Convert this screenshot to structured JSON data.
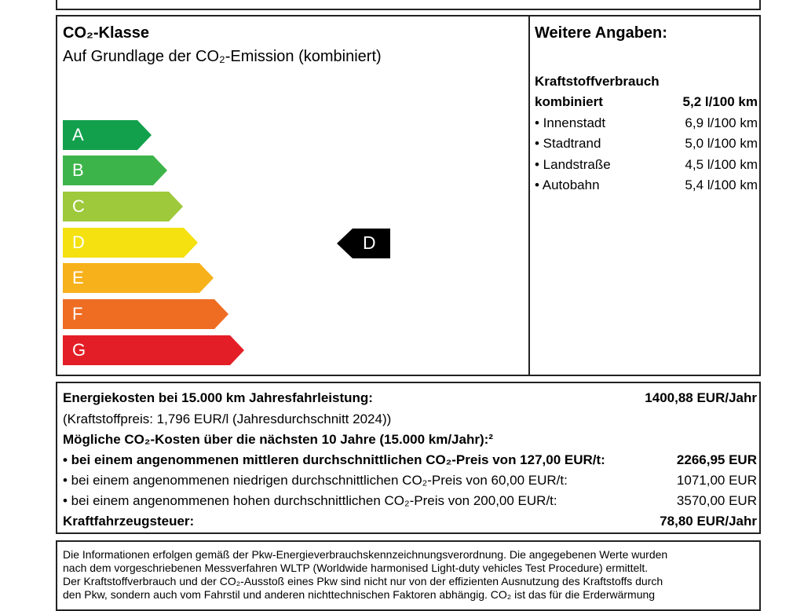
{
  "co2": {
    "title": "CO₂-Klasse",
    "subtitle": "Auf Grundlage der CO₂-Emission (kombiniert)",
    "classes": [
      {
        "label": "A",
        "color": "#12a04d"
      },
      {
        "label": "B",
        "color": "#3db44a"
      },
      {
        "label": "C",
        "color": "#9dc93b"
      },
      {
        "label": "D",
        "color": "#f4e10f"
      },
      {
        "label": "E",
        "color": "#f7b11b"
      },
      {
        "label": "F",
        "color": "#ee6d23"
      },
      {
        "label": "G",
        "color": "#e41e26"
      }
    ],
    "current": "D"
  },
  "info": {
    "title": "Weitere Angaben:",
    "consumption_heading": "Kraftstoffverbrauch",
    "rows": [
      {
        "label": "kombiniert",
        "value": "5,2 l/100 km"
      },
      {
        "label": "• Innenstadt",
        "value": "6,9 l/100 km"
      },
      {
        "label": "• Stadtrand",
        "value": "5,0 l/100 km"
      },
      {
        "label": "• Landstraße",
        "value": "4,5 l/100 km"
      },
      {
        "label": "• Autobahn",
        "value": "5,4 l/100 km"
      }
    ]
  },
  "costs": {
    "energy_label": "Energiekosten bei 15.000 km Jahresfahrleistung:",
    "energy_value": "1400,88 EUR/Jahr",
    "fuel_price": "(Kraftstoffpreis: 1,796 EUR/l (Jahresdurchschnitt 2024))",
    "co2_heading": "Mögliche CO₂-Kosten über die nächsten 10 Jahre (15.000 km/Jahr):²",
    "mid_label": "• bei einem angenommenen mittleren durchschnittlichen CO₂-Preis von 127,00 EUR/t:",
    "mid_value": "2266,95 EUR",
    "low_label": "• bei einem angenommenen niedrigen durchschnittlichen CO₂-Preis von 60,00 EUR/t:",
    "low_value": "1071,00 EUR",
    "high_label": "• bei einem angenommenen hohen durchschnittlichen CO₂-Preis von 200,00 EUR/t:",
    "high_value": "3570,00 EUR",
    "tax_label": "Kraftfahrzeugsteuer:",
    "tax_value": "78,80 EUR/Jahr"
  },
  "legal": {
    "lines": [
      "Die Informationen erfolgen gemäß der Pkw-Energieverbrauchskennzeichnungsverordnung. Die angegebenen Werte wurden",
      "nach dem vorgeschriebenen Messverfahren WLTP (Worldwide harmonised Light-duty vehicles Test Procedure) ermittelt.",
      "Der Kraftstoffverbrauch und der CO₂-Ausstoß eines Pkw sind nicht nur von der effizienten Ausnutzung des Kraftstoffs durch",
      "den Pkw, sondern auch vom Fahrstil und anderen nichttechnischen Faktoren abhängig. CO₂ ist das für die Erderwärmung"
    ]
  }
}
